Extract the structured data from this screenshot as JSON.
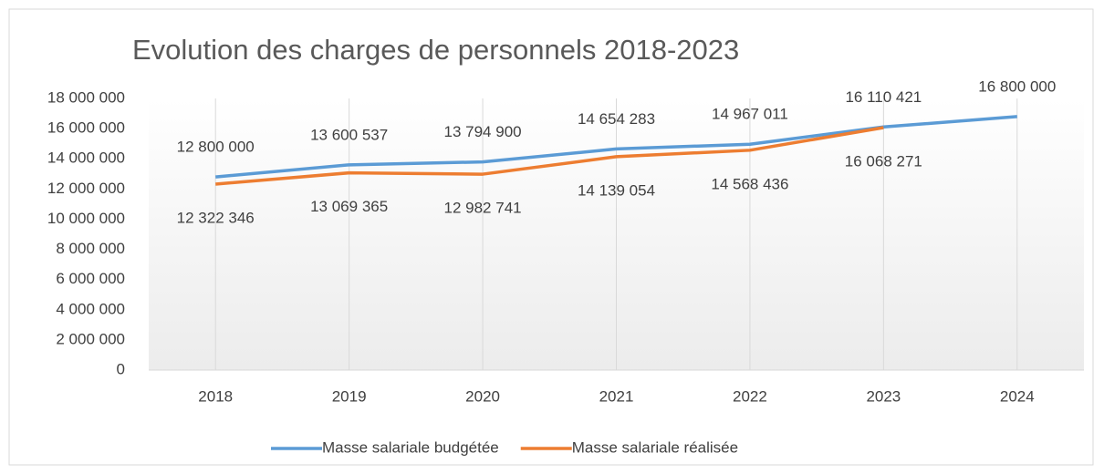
{
  "chart_data": {
    "type": "line",
    "title": "Evolution des charges de personnels 2018-2023",
    "categories": [
      "2018",
      "2019",
      "2020",
      "2021",
      "2022",
      "2023",
      "2024"
    ],
    "series": [
      {
        "name": "Masse salariale budgétée",
        "color": "#5b9bd5",
        "values": [
          12800000,
          13600537,
          13794900,
          14654283,
          14967011,
          16110421,
          16800000
        ],
        "value_labels": [
          "12 800 000",
          "13 600 537",
          "13 794 900",
          "14 654 283",
          "14 967 011",
          "16 110 421",
          "16 800 000"
        ]
      },
      {
        "name": "Masse salariale réalisée",
        "color": "#ed7d31",
        "values": [
          12322346,
          13069365,
          12982741,
          14139054,
          14568436,
          16068271,
          null
        ],
        "value_labels": [
          "12 322 346",
          "13 069 365",
          "12 982 741",
          "14 139 054",
          "14 568 436",
          "16 068 271",
          null
        ]
      }
    ],
    "ylim": [
      0,
      18000000
    ],
    "yticks": [
      0,
      {
        "value": 2000000,
        "label": "2 000 000"
      },
      {
        "value": 4000000,
        "label": "4 000 000"
      },
      {
        "value": 6000000,
        "label": "6 000 000"
      },
      {
        "value": 8000000,
        "label": "8 000 000"
      },
      {
        "value": 10000000,
        "label": "10 000 000"
      },
      {
        "value": 12000000,
        "label": "12 000 000"
      },
      {
        "value": 14000000,
        "label": "14 000 000"
      },
      {
        "value": 16000000,
        "label": "16 000 000"
      },
      {
        "value": 18000000,
        "label": "18 000 000"
      }
    ],
    "grid": true,
    "legend": "bottom"
  }
}
